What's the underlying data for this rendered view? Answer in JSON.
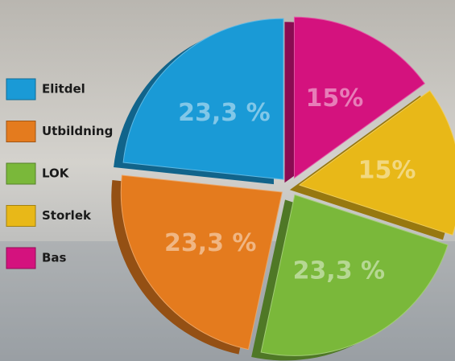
{
  "chart_data": {
    "type": "pie",
    "categories": [
      "Elitdel",
      "Utbildning",
      "LOK",
      "Storlek",
      "Bas"
    ],
    "values": [
      23.3,
      23.3,
      23.3,
      15,
      15
    ],
    "value_labels": [
      "23,3 %",
      "23,3 %",
      "23,3 %",
      "15%",
      "15%"
    ],
    "colors": [
      "#1a9ad6",
      "#e47b1e",
      "#7ab83a",
      "#e8b818",
      "#d4127e"
    ]
  }
}
